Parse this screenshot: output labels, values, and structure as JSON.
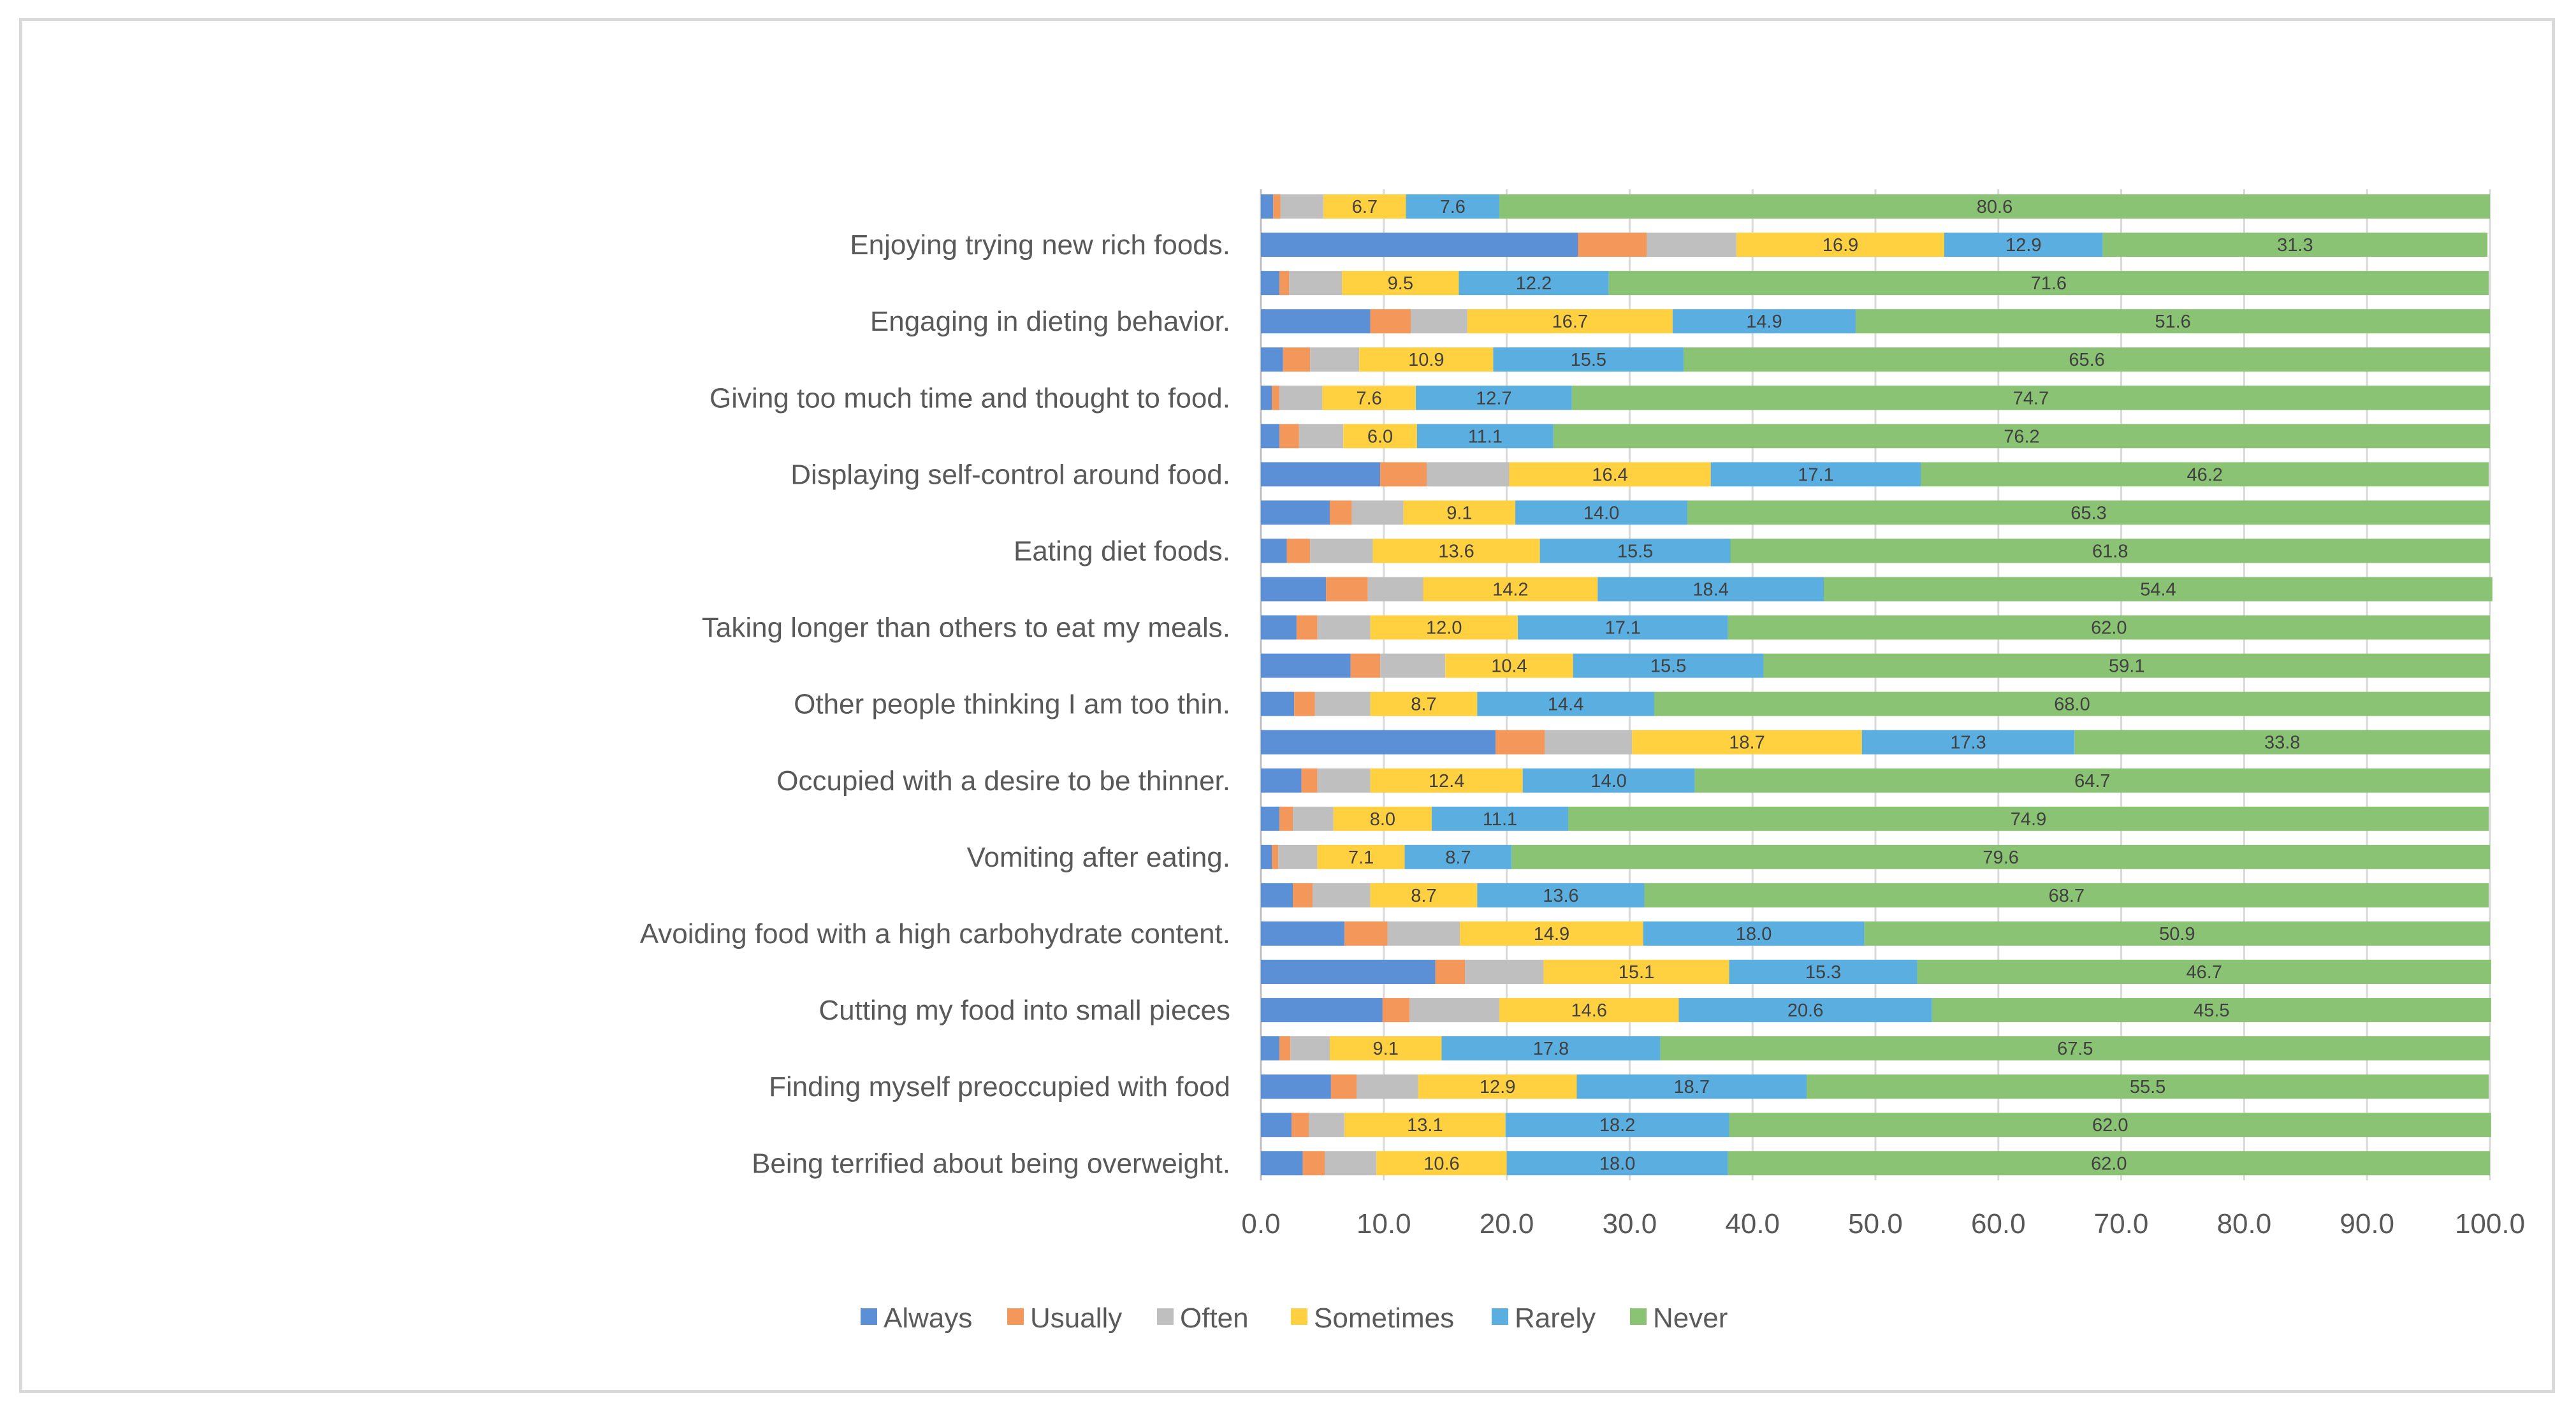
{
  "chart_data": {
    "type": "bar",
    "orientation": "horizontal",
    "stacked": true,
    "xlim": [
      0,
      100
    ],
    "xticks": [
      "0.0",
      "10.0",
      "20.0",
      "30.0",
      "40.0",
      "50.0",
      "60.0",
      "70.0",
      "80.0",
      "90.0",
      "100.0"
    ],
    "grid": "vertical",
    "legend_position": "bottom",
    "series": [
      {
        "name": "Always",
        "color": "#5b8fd6"
      },
      {
        "name": "Usually",
        "color": "#f4975b"
      },
      {
        "name": "Often",
        "color": "#bfbfbf"
      },
      {
        "name": "Sometimes",
        "color": "#ffd03f"
      },
      {
        "name": "Rarely",
        "color": "#5aaee0"
      },
      {
        "name": "Never",
        "color": "#8ac373"
      }
    ],
    "bars": [
      {
        "label": "",
        "values": [
          1.0,
          0.6,
          3.5,
          6.7,
          7.6,
          80.6
        ]
      },
      {
        "label": "Enjoying trying new rich foods.",
        "values": [
          25.8,
          5.6,
          7.3,
          16.9,
          12.9,
          31.3
        ]
      },
      {
        "label": "",
        "values": [
          1.5,
          0.8,
          4.3,
          9.5,
          12.2,
          71.6
        ]
      },
      {
        "label": "Engaging in dieting behavior.",
        "values": [
          8.9,
          3.3,
          4.6,
          16.7,
          14.9,
          51.6
        ]
      },
      {
        "label": "",
        "values": [
          1.8,
          2.2,
          4.0,
          10.9,
          15.5,
          65.6
        ]
      },
      {
        "label": "Giving too much time and thought to food.",
        "values": [
          0.9,
          0.6,
          3.5,
          7.6,
          12.7,
          74.7
        ]
      },
      {
        "label": "",
        "values": [
          1.5,
          1.6,
          3.6,
          6.0,
          11.1,
          76.2
        ]
      },
      {
        "label": "Displaying self-control around food.",
        "values": [
          9.7,
          3.8,
          6.7,
          16.4,
          17.1,
          46.2
        ]
      },
      {
        "label": "",
        "values": [
          5.6,
          1.8,
          4.2,
          9.1,
          14.0,
          65.3
        ]
      },
      {
        "label": "Eating diet foods.",
        "values": [
          2.1,
          1.9,
          5.1,
          13.6,
          15.5,
          61.8
        ]
      },
      {
        "label": "",
        "values": [
          5.3,
          3.4,
          4.5,
          14.2,
          18.4,
          54.4
        ]
      },
      {
        "label": "Taking longer than others to eat my meals.",
        "values": [
          2.9,
          1.7,
          4.3,
          12.0,
          17.1,
          62.0
        ]
      },
      {
        "label": "",
        "values": [
          7.3,
          2.4,
          5.3,
          10.4,
          15.5,
          59.1
        ]
      },
      {
        "label": "Other people thinking I am too thin.",
        "values": [
          2.7,
          1.7,
          4.5,
          8.7,
          14.4,
          68.0
        ]
      },
      {
        "label": "",
        "values": [
          19.1,
          4.0,
          7.1,
          18.7,
          17.3,
          33.8
        ]
      },
      {
        "label": "Occupied with a desire to be thinner.",
        "values": [
          3.3,
          1.3,
          4.3,
          12.4,
          14.0,
          64.7
        ]
      },
      {
        "label": "",
        "values": [
          1.5,
          1.1,
          3.3,
          8.0,
          11.1,
          74.9
        ]
      },
      {
        "label": "Vomiting after eating.",
        "values": [
          0.9,
          0.5,
          3.2,
          7.1,
          8.7,
          79.6
        ]
      },
      {
        "label": "",
        "values": [
          2.6,
          1.6,
          4.7,
          8.7,
          13.6,
          68.7
        ]
      },
      {
        "label": "Avoiding food with a high carbohydrate content.",
        "values": [
          6.8,
          3.5,
          5.9,
          14.9,
          18.0,
          50.9
        ]
      },
      {
        "label": "",
        "values": [
          14.2,
          2.4,
          6.4,
          15.1,
          15.3,
          46.7
        ]
      },
      {
        "label": "Cutting my food into small pieces",
        "values": [
          9.9,
          2.2,
          7.3,
          14.6,
          20.6,
          45.5
        ]
      },
      {
        "label": "",
        "values": [
          1.5,
          0.9,
          3.2,
          9.1,
          17.8,
          67.5
        ]
      },
      {
        "label": "Finding myself preoccupied with food",
        "values": [
          5.7,
          2.1,
          5.0,
          12.9,
          18.7,
          55.5
        ]
      },
      {
        "label": "",
        "values": [
          2.5,
          1.4,
          2.9,
          13.1,
          18.2,
          62.0
        ]
      },
      {
        "label": "Being terrified about being overweight.",
        "values": [
          3.4,
          1.8,
          4.2,
          10.6,
          18.0,
          62.0
        ]
      }
    ],
    "data_labels": "shown for Sometimes, Rarely, Never"
  }
}
